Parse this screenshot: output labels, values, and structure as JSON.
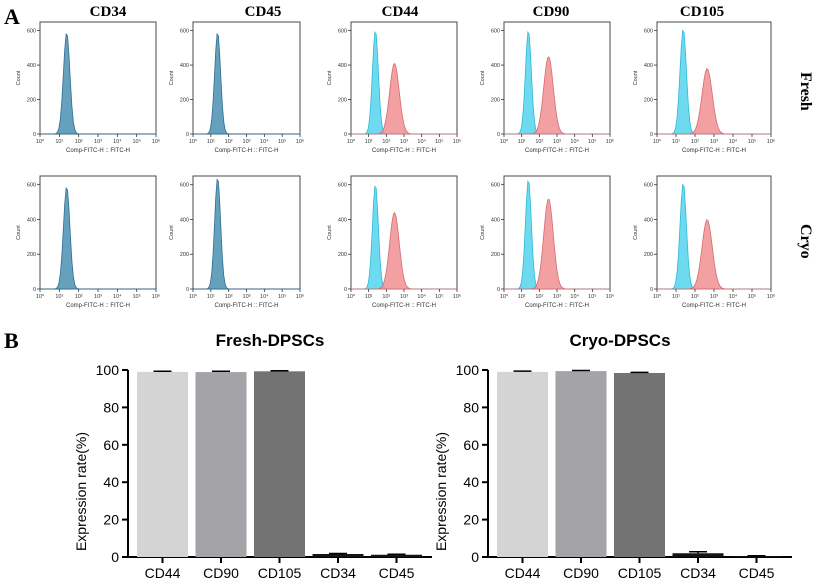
{
  "panel_a": {
    "letter": "A",
    "columns": [
      "CD34",
      "CD45",
      "CD44",
      "CD90",
      "CD105"
    ],
    "rows": [
      "Fresh",
      "Cryo"
    ],
    "y_axis_label": "Count",
    "x_axis_label": "Comp-FITC-H :: FITC-H",
    "y_ticks": [
      "0",
      "200",
      "400",
      "600"
    ],
    "x_ticks": [
      "10⁰",
      "10¹",
      "10²",
      "10³",
      "10⁴",
      "10⁵",
      "10⁶"
    ],
    "colors": {
      "control": "#55d3ec",
      "sample": "#f08f92",
      "overlap": "#4a8fb2"
    }
  },
  "panel_b": {
    "letter": "B"
  },
  "chart_data": [
    {
      "type": "histogram",
      "title": "Fresh",
      "x_scale": "log",
      "xlim": [
        1,
        1000000
      ],
      "ylim": [
        0,
        650
      ],
      "panels": [
        {
          "marker": "CD34",
          "control_peak": 590,
          "sample_peak": 590,
          "overlapping": true
        },
        {
          "marker": "CD45",
          "control_peak": 590,
          "sample_peak": 590,
          "overlapping": true
        },
        {
          "marker": "CD44",
          "control_peak": 600,
          "sample_peak": 410,
          "overlapping": false
        },
        {
          "marker": "CD90",
          "control_peak": 600,
          "sample_peak": 450,
          "overlapping": false
        },
        {
          "marker": "CD105",
          "control_peak": 610,
          "sample_peak": 380,
          "overlapping": false
        }
      ]
    },
    {
      "type": "histogram",
      "title": "Cryo",
      "x_scale": "log",
      "xlim": [
        1,
        1000000
      ],
      "ylim": [
        0,
        650
      ],
      "panels": [
        {
          "marker": "CD34",
          "control_peak": 590,
          "sample_peak": 590,
          "overlapping": true
        },
        {
          "marker": "CD45",
          "control_peak": 640,
          "sample_peak": 640,
          "overlapping": true
        },
        {
          "marker": "CD44",
          "control_peak": 600,
          "sample_peak": 440,
          "overlapping": false
        },
        {
          "marker": "CD90",
          "control_peak": 630,
          "sample_peak": 520,
          "overlapping": false
        },
        {
          "marker": "CD105",
          "control_peak": 610,
          "sample_peak": 400,
          "overlapping": false
        }
      ]
    },
    {
      "type": "bar",
      "title": "Fresh-DPSCs",
      "ylabel": "Expression rate(%)",
      "categories": [
        "CD44",
        "CD90",
        "CD105",
        "CD34",
        "CD45"
      ],
      "values": [
        99.0,
        98.9,
        99.3,
        1.6,
        1.2
      ],
      "errors": [
        0.3,
        0.4,
        0.3,
        0.3,
        0.3
      ],
      "colors": [
        "#d4d4d4",
        "#a3a3a8",
        "#737373",
        "#141414",
        "#141414"
      ],
      "ylim": [
        0,
        100
      ],
      "yticks": [
        "0",
        "20",
        "40",
        "60",
        "80",
        "100"
      ]
    },
    {
      "type": "bar",
      "title": "Cryo-DPSCs",
      "ylabel": "Expression rate(%)",
      "categories": [
        "CD44",
        "CD90",
        "CD105",
        "CD34",
        "CD45"
      ],
      "values": [
        99.0,
        99.4,
        98.4,
        2.0,
        0.5
      ],
      "errors": [
        0.4,
        0.3,
        0.3,
        0.8,
        0.2
      ],
      "colors": [
        "#d4d4d4",
        "#a3a3a8",
        "#737373",
        "#141414",
        "#141414"
      ],
      "ylim": [
        0,
        100
      ],
      "yticks": [
        "0",
        "20",
        "40",
        "60",
        "80",
        "100"
      ]
    }
  ]
}
